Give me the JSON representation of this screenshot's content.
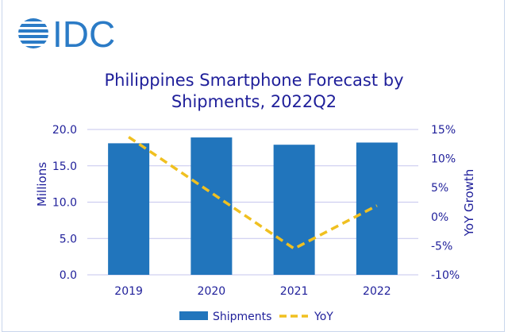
{
  "logo": {
    "text": "IDC",
    "color": "#2b7bc6"
  },
  "chart_data": {
    "type": "bar+line",
    "title_line1": "Philippines Smartphone Forecast by",
    "title_line2": "Shipments, 2022Q2",
    "categories": [
      "2019",
      "2020",
      "2021",
      "2022"
    ],
    "series": [
      {
        "name": "Shipments",
        "type": "bar",
        "axis": "left",
        "color": "#2175bc",
        "values": [
          18.1,
          18.9,
          17.9,
          18.2
        ]
      },
      {
        "name": "YoY",
        "type": "line",
        "style": "dashed",
        "axis": "right",
        "color": "#f0c020",
        "values": [
          13.7,
          4.1,
          -5.5,
          1.9
        ]
      }
    ],
    "ylabel": "Millions",
    "ylim": [
      0,
      20
    ],
    "yticks": [
      "0.0",
      "5.0",
      "10.0",
      "15.0",
      "20.0"
    ],
    "y2label": "YoY Growth",
    "y2lim": [
      -10,
      15
    ],
    "y2ticks": [
      "-10%",
      "-5%",
      "0%",
      "5%",
      "10%",
      "15%"
    ],
    "grid": true,
    "legend": "bottom",
    "axis_text_color": "#1f1f9a",
    "grid_color": "#c6c6ee"
  }
}
